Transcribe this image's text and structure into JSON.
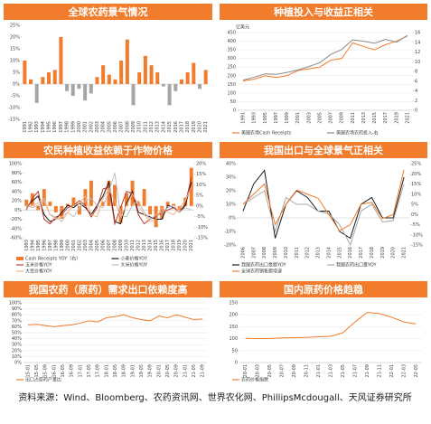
{
  "chart_data": [
    {
      "type": "bar",
      "title": "全球农药景气情况",
      "categories": [
        "1991",
        "1992",
        "1993",
        "1994",
        "1995",
        "1996",
        "1997",
        "1998",
        "1999",
        "2000",
        "2001",
        "2002",
        "2003",
        "2004",
        "2005",
        "2006",
        "2007",
        "2008",
        "2009",
        "2010",
        "2011",
        "2012",
        "2013",
        "2014",
        "2015",
        "2016",
        "2017",
        "2018",
        "2019",
        "2020",
        "2021"
      ],
      "values": [
        10,
        2,
        -8,
        3,
        5,
        6,
        20,
        -3,
        -5,
        -2,
        -7,
        -4,
        3,
        8,
        4,
        2,
        10,
        19,
        -9,
        5,
        12,
        8,
        5,
        -1,
        -9,
        -3,
        2,
        5,
        9,
        -2,
        6
      ],
      "color": "#f07c2c",
      "negative_color": "#a6a6a6",
      "ylim": [
        -15,
        25
      ],
      "yticks": [
        {
          "value": 25,
          "label": "25%"
        },
        {
          "value": 20,
          "label": "20%"
        },
        {
          "value": 15,
          "label": "15%"
        },
        {
          "value": 10,
          "label": "10%"
        },
        {
          "value": 5,
          "label": "5%"
        },
        {
          "value": 0,
          "label": "0%"
        },
        {
          "value": -5,
          "label": "-5%"
        },
        {
          "value": -10,
          "label": "-10%"
        },
        {
          "value": -15,
          "label": "-15%"
        }
      ],
      "grid": false
    },
    {
      "type": "line",
      "title": "种植投入与收益正相关",
      "unit_label": "亿美元",
      "categories": [
        "1991",
        "1993",
        "1995",
        "1997",
        "1999",
        "2001",
        "2003",
        "2005",
        "2007",
        "2009",
        "2011",
        "2013",
        "2015",
        "2017",
        "2019",
        "2021"
      ],
      "series": [
        {
          "name": "美国农场Cash Receipts",
          "color": "#f07c2c",
          "values": [
            170,
            180,
            200,
            190,
            200,
            230,
            240,
            250,
            290,
            300,
            390,
            370,
            350,
            380,
            400,
            430
          ]
        },
        {
          "name": "美国农场农药投入-右",
          "color": "#8c8c8c",
          "axis": "y2",
          "values": [
            6.2,
            6.8,
            7.5,
            7.4,
            7.8,
            8.3,
            9,
            9.8,
            11.5,
            12.5,
            14.5,
            14.2,
            13.8,
            14.6,
            14,
            15.4
          ]
        }
      ],
      "ylim": [
        0,
        450
      ],
      "yticks": [
        0,
        50,
        100,
        150,
        200,
        250,
        300,
        350,
        400,
        450
      ],
      "y2lim": [
        0,
        16
      ],
      "y2ticks": [
        0,
        2,
        4,
        6,
        8,
        10,
        12,
        14,
        16
      ],
      "grid": true
    },
    {
      "type": "combo",
      "title": "农民种植收益依赖于作物价格",
      "categories": [
        "1993",
        "1994",
        "1995",
        "1996",
        "1997",
        "1998",
        "1999",
        "2000",
        "2001",
        "2002",
        "2003",
        "2004",
        "2005",
        "2006",
        "2007",
        "2008",
        "2009",
        "2010",
        "2011",
        "2012",
        "2013",
        "2014",
        "2015",
        "2016",
        "2017",
        "2018",
        "2019",
        "2020",
        "2021"
      ],
      "series": [
        {
          "name": "Cash Receipts YOY（右）",
          "type": "bar",
          "axis": "y2",
          "color": "#f07c2c",
          "values": [
            3,
            6,
            -2,
            8,
            2,
            -3,
            -6,
            1,
            4,
            -4,
            8,
            12,
            0,
            2,
            12,
            10,
            -8,
            6,
            12,
            2,
            8,
            -4,
            -10,
            -6,
            2,
            1,
            -2,
            4,
            18
          ]
        },
        {
          "name": "小麦价格YOY",
          "color": "#1a1a1a",
          "values": [
            5,
            20,
            30,
            -10,
            -25,
            -20,
            -5,
            10,
            5,
            15,
            5,
            -10,
            10,
            30,
            60,
            -25,
            -30,
            15,
            40,
            -5,
            -10,
            -15,
            -20,
            -20,
            10,
            5,
            -5,
            10,
            60
          ]
        },
        {
          "name": "玉米价格YOY",
          "color": "#c0392b",
          "values": [
            0,
            25,
            40,
            -20,
            -30,
            -15,
            -10,
            5,
            10,
            20,
            10,
            -15,
            5,
            45,
            50,
            -30,
            5,
            40,
            35,
            -10,
            -30,
            -20,
            -15,
            -5,
            0,
            5,
            -5,
            15,
            70
          ]
        },
        {
          "name": "大米价格YOY",
          "color": "#bfbfbf",
          "values": [
            10,
            5,
            10,
            20,
            -10,
            -15,
            -25,
            -5,
            -15,
            5,
            20,
            25,
            10,
            5,
            40,
            80,
            -10,
            -15,
            10,
            20,
            -5,
            -20,
            -10,
            -5,
            5,
            10,
            -5,
            5,
            0
          ]
        },
        {
          "name": "大豆价格YOY",
          "color": "#f4b183",
          "values": [
            5,
            10,
            15,
            25,
            -10,
            -20,
            -15,
            -5,
            10,
            15,
            30,
            -10,
            -15,
            25,
            45,
            20,
            -15,
            10,
            35,
            10,
            -10,
            -25,
            -20,
            5,
            -5,
            -10,
            5,
            20,
            50
          ]
        }
      ],
      "ylim": [
        -60,
        100
      ],
      "yticks": [
        {
          "value": 100,
          "label": "100%"
        },
        {
          "value": 80,
          "label": "80%"
        },
        {
          "value": 60,
          "label": "60%"
        },
        {
          "value": 40,
          "label": "40%"
        },
        {
          "value": 20,
          "label": "20%"
        },
        {
          "value": 0,
          "label": "0%"
        },
        {
          "value": -20,
          "label": "-20%"
        },
        {
          "value": -40,
          "label": "-40%"
        },
        {
          "value": -60,
          "label": "-60%"
        }
      ],
      "y2lim": [
        -15,
        20
      ],
      "y2ticks": [
        {
          "value": 20,
          "label": "20%"
        },
        {
          "value": 15,
          "label": "15%"
        },
        {
          "value": 10,
          "label": "10%"
        },
        {
          "value": 5,
          "label": "5%"
        },
        {
          "value": 0,
          "label": "0%"
        },
        {
          "value": -5,
          "label": "-5%"
        },
        {
          "value": -10,
          "label": "-10%"
        },
        {
          "value": -15,
          "label": "-15%"
        }
      ],
      "grid": false
    },
    {
      "type": "line",
      "title": "我国出口与全球景气正相关",
      "categories": [
        "2006",
        "2007",
        "2008",
        "2009",
        "2010",
        "2011",
        "2012",
        "2013",
        "2014",
        "2015",
        "2016",
        "2017",
        "2018",
        "2019",
        "2020",
        "2021"
      ],
      "series": [
        {
          "name": "我国农药出口金额YOY",
          "color": "#1a1a1a",
          "values": [
            5,
            25,
            35,
            -15,
            10,
            20,
            15,
            5,
            5,
            -10,
            -15,
            10,
            15,
            0,
            0,
            30
          ]
        },
        {
          "name": "我国农药出口量YOY",
          "color": "#a6a6a6",
          "values": [
            10,
            15,
            20,
            -10,
            15,
            10,
            10,
            5,
            3,
            -5,
            -20,
            5,
            10,
            -3,
            -2,
            25
          ]
        },
        {
          "name": "全球农药销售额增速",
          "color": "#f07c2c",
          "axis": "y2",
          "values": [
            5,
            10,
            15,
            -5,
            5,
            12,
            10,
            8,
            0,
            -8,
            -5,
            5,
            6,
            -2,
            0,
            22
          ]
        }
      ],
      "ylim": [
        -20,
        40
      ],
      "yticks": [
        {
          "value": 40,
          "label": "40%"
        },
        {
          "value": 30,
          "label": "30%"
        },
        {
          "value": 20,
          "label": "20%"
        },
        {
          "value": 10,
          "label": "10%"
        },
        {
          "value": 0,
          "label": "0%"
        },
        {
          "value": -10,
          "label": "-10%"
        },
        {
          "value": -20,
          "label": "-20%"
        }
      ],
      "y2lim": [
        -15,
        25
      ],
      "y2ticks": [
        {
          "value": 25,
          "label": "25%"
        },
        {
          "value": 20,
          "label": "20%"
        },
        {
          "value": 15,
          "label": "15%"
        },
        {
          "value": 10,
          "label": "10%"
        },
        {
          "value": 5,
          "label": "5%"
        },
        {
          "value": 0,
          "label": "0%"
        },
        {
          "value": -5,
          "label": "-5%"
        },
        {
          "value": -10,
          "label": "-10%"
        },
        {
          "value": -15,
          "label": "-15%"
        }
      ],
      "grid": false
    },
    {
      "type": "line",
      "title": "我国农药（原药）需求出口依赖度高",
      "categories": [
        "15-01",
        "15-05",
        "15-09",
        "16-01",
        "16-05",
        "16-09",
        "17-01",
        "17-05",
        "17-09",
        "18-01",
        "18-05",
        "18-09",
        "19-01",
        "19-05",
        "19-09",
        "20-01",
        "20-05",
        "20-09",
        "21-01",
        "21-05",
        "21-09"
      ],
      "series": [
        {
          "name": "出口占原药产量比",
          "color": "#f07c2c",
          "values": [
            63,
            64,
            62,
            60,
            62,
            63,
            66,
            70,
            68,
            75,
            77,
            80,
            75,
            72,
            70,
            78,
            75,
            80,
            76,
            72,
            73
          ]
        }
      ],
      "ylim": [
        0,
        100
      ],
      "yticks": [
        {
          "value": 0,
          "label": "0%"
        },
        {
          "value": 10,
          "label": "10%"
        },
        {
          "value": 20,
          "label": "20%"
        },
        {
          "value": 30,
          "label": "30%"
        },
        {
          "value": 40,
          "label": "40%"
        },
        {
          "value": 50,
          "label": "50%"
        },
        {
          "value": 60,
          "label": "60%"
        },
        {
          "value": 70,
          "label": "70%"
        },
        {
          "value": 80,
          "label": "80%"
        },
        {
          "value": 90,
          "label": "90%"
        },
        {
          "value": 100,
          "label": "100%"
        }
      ],
      "grid": true
    },
    {
      "type": "line",
      "title": "国内原药价格趋稳",
      "categories": [
        "20-01",
        "20-03",
        "20-05",
        "20-07",
        "20-09",
        "20-11",
        "21-01",
        "21-03",
        "21-05",
        "21-07",
        "21-09",
        "21-11",
        "22-01",
        "22-03",
        "22-05"
      ],
      "series": [
        {
          "name": "农药价格指数",
          "color": "#f07c2c",
          "values": [
            102,
            100,
            101,
            103,
            104,
            105,
            108,
            110,
            125,
            170,
            210,
            205,
            190,
            170,
            162
          ]
        }
      ],
      "ylim": [
        0,
        250
      ],
      "yticks": [
        0,
        50,
        100,
        150,
        200,
        250
      ],
      "grid": true
    }
  ],
  "source": "资料来源：Wind、Bloomberg、农药资讯网、世界农化网、PhillipsMcdougall、天风证券研究所"
}
